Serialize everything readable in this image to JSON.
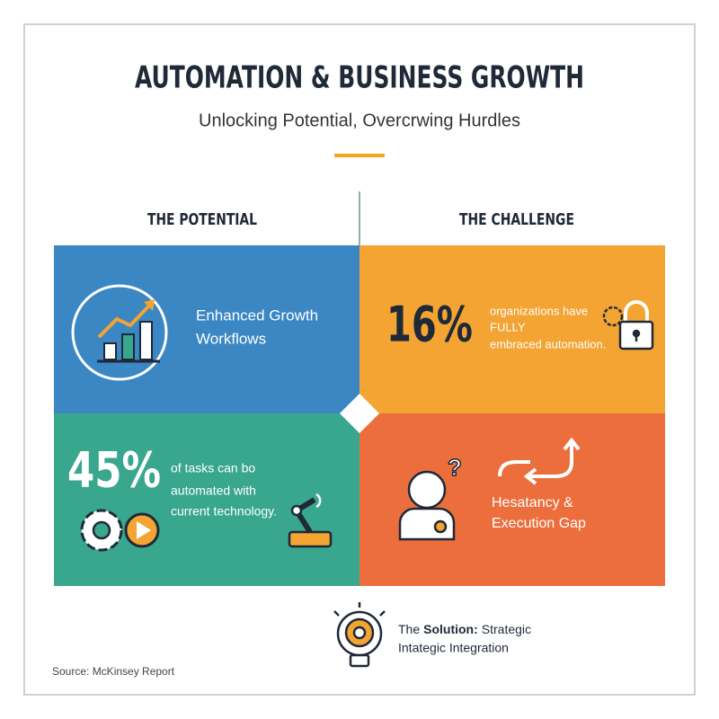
{
  "header": {
    "title": "AUTOMATION & BUSINESS GROWTH",
    "subtitle": "Unlocking Potential, Overcrwing Hurdles"
  },
  "columns": {
    "left": "THE POTENTIAL",
    "right": "THE CHALLENGE"
  },
  "quadrants": [
    {
      "lines": [
        "Enhanced Growth",
        "Workflows"
      ]
    },
    {
      "stat": "16%",
      "lines": [
        "organizations have",
        "FULLY",
        "embraced automation."
      ]
    },
    {
      "stat": "45%",
      "lines": [
        "of tasks can bo",
        "automated with",
        "current technology."
      ]
    },
    {
      "lines": [
        "Hesatancy &",
        "Execution Gap"
      ]
    }
  ],
  "solution": {
    "lead": "The",
    "emphasis": "Solution:",
    "rest": "Strategic",
    "line2": "Intategic Integration"
  },
  "source": "Source: McKinsey Report"
}
